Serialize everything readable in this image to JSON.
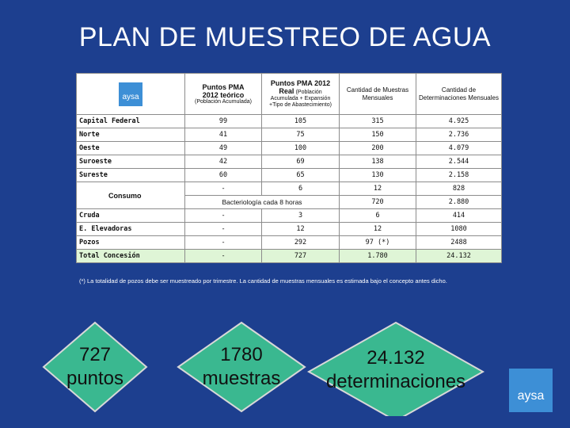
{
  "title": "PLAN DE MUESTREO DE AGUA",
  "logo_text": "aysa",
  "headers": {
    "col1_a": "Puntos PMA",
    "col1_b": "2012 teórico",
    "col1_note": "(Población Acumulada)",
    "col2_a": "Puntos PMA 2012",
    "col2_b": "Real",
    "col2_b2": "(Población",
    "col2_note": "Acumulada + Expansión +Tipo de Abastecimiento)",
    "col3": "Cantidad de Muestras Mensuales",
    "col4": "Cantidad de Determinaciones Mensuales"
  },
  "rows_top": [
    {
      "label": "Capital Federal",
      "c1": "99",
      "c2": "105",
      "c3": "315",
      "c4": "4.925"
    },
    {
      "label": "Norte",
      "c1": "41",
      "c2": "75",
      "c3": "150",
      "c4": "2.736"
    },
    {
      "label": "Oeste",
      "c1": "49",
      "c2": "100",
      "c3": "200",
      "c4": "4.079"
    },
    {
      "label": "Suroeste",
      "c1": "42",
      "c2": "69",
      "c3": "138",
      "c4": "2.544"
    },
    {
      "label": "Sureste",
      "c1": "60",
      "c2": "65",
      "c3": "130",
      "c4": "2.158"
    }
  ],
  "consumo": {
    "label": "Consumo",
    "row1": {
      "c1": "-",
      "c2": "6",
      "c3": "12",
      "c4": "828"
    },
    "row2": {
      "c12": "Bacteriología cada 8 horas",
      "c3": "720",
      "c4": "2.880"
    }
  },
  "rows_bottom": [
    {
      "label": "Cruda",
      "c1": "-",
      "c2": "3",
      "c3": "6",
      "c4": "414"
    },
    {
      "label": "E. Elevadoras",
      "c1": "-",
      "c2": "12",
      "c3": "12",
      "c4": "1080"
    },
    {
      "label": "Pozos",
      "c1": "-",
      "c2": "292",
      "c3": "97 (*)",
      "c4": "2488"
    }
  ],
  "total": {
    "label": "Total Concesión",
    "c1": "-",
    "c2": "727",
    "c3": "1.780",
    "c4": "24.132"
  },
  "note": "(*) La totalidad de pozos debe ser muestreado por trimestre. La cantidad de muestras mensuales es estimada bajo el concepto antes dicho.",
  "summary": [
    {
      "line1": "727",
      "line2": "puntos"
    },
    {
      "line1": "1780",
      "line2": "muestras"
    },
    {
      "line1": "24.132",
      "line2": "determinaciones"
    }
  ],
  "colors": {
    "background": "#1d3f8f",
    "diamond": "#3ab890",
    "total_row": "#dff5d6",
    "logo": "#3d8fd6"
  }
}
